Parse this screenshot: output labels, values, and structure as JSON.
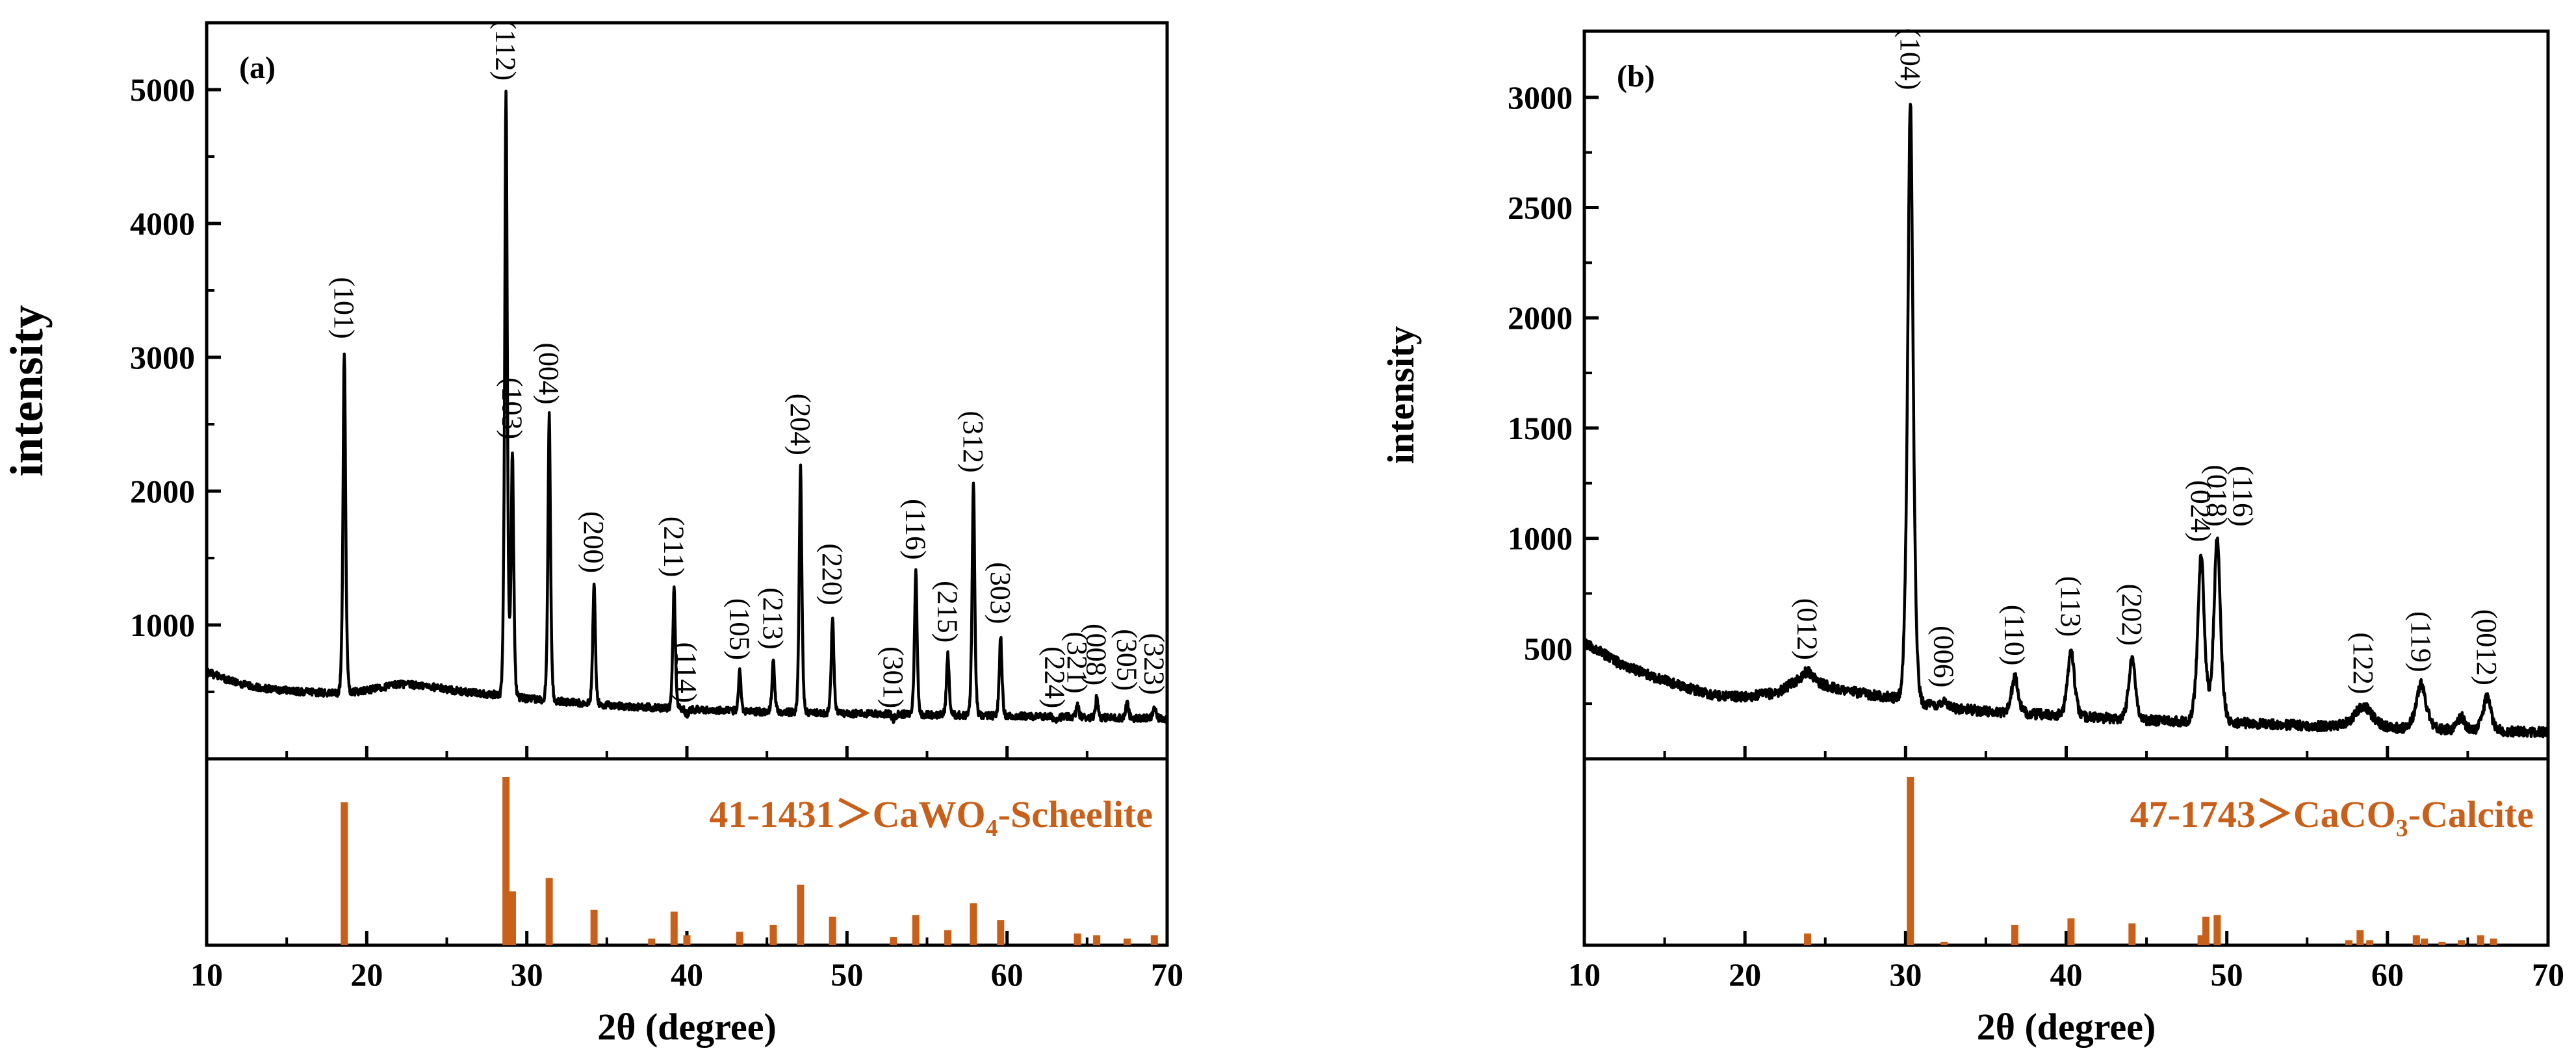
{
  "chart_data": [
    {
      "panel": "(a)",
      "type": "line",
      "xlabel": "2θ (degree)",
      "ylabel": "intensity",
      "xlim": [
        10,
        70
      ],
      "ylim": [
        0,
        5500
      ],
      "x_ticks": [
        10,
        20,
        30,
        40,
        50,
        60,
        70
      ],
      "y_ticks": [
        1000,
        2000,
        3000,
        4000,
        5000
      ],
      "baseline": [
        [
          10,
          650
        ],
        [
          12,
          560
        ],
        [
          14,
          520
        ],
        [
          16,
          500
        ],
        [
          18,
          490
        ],
        [
          20,
          510
        ],
        [
          22,
          560
        ],
        [
          24,
          540
        ],
        [
          26,
          500
        ],
        [
          28,
          480
        ],
        [
          30,
          450
        ],
        [
          35,
          400
        ],
        [
          40,
          370
        ],
        [
          45,
          350
        ],
        [
          50,
          340
        ],
        [
          55,
          330
        ],
        [
          60,
          320
        ],
        [
          65,
          310
        ],
        [
          70,
          300
        ]
      ],
      "peaks": [
        {
          "two_theta": 18.6,
          "intensity": 3050,
          "hkl": "(101)"
        },
        {
          "two_theta": 28.7,
          "intensity": 4980,
          "hkl": "(112)"
        },
        {
          "two_theta": 29.1,
          "intensity": 2300,
          "hkl": "(103)"
        },
        {
          "two_theta": 31.4,
          "intensity": 2560,
          "hkl": "(004)"
        },
        {
          "two_theta": 34.2,
          "intensity": 1300,
          "hkl": "(200)"
        },
        {
          "two_theta": 39.2,
          "intensity": 1270,
          "hkl": "(211)"
        },
        {
          "two_theta": 40.0,
          "intensity": 330,
          "hkl": "(114)"
        },
        {
          "two_theta": 43.3,
          "intensity": 650,
          "hkl": "(105)"
        },
        {
          "two_theta": 45.4,
          "intensity": 730,
          "hkl": "(213)"
        },
        {
          "two_theta": 47.1,
          "intensity": 2180,
          "hkl": "(204)"
        },
        {
          "two_theta": 49.1,
          "intensity": 1060,
          "hkl": "(220)"
        },
        {
          "two_theta": 52.9,
          "intensity": 290,
          "hkl": "(301)"
        },
        {
          "two_theta": 54.3,
          "intensity": 1400,
          "hkl": "(116)"
        },
        {
          "two_theta": 56.3,
          "intensity": 780,
          "hkl": "(215)"
        },
        {
          "two_theta": 57.9,
          "intensity": 2050,
          "hkl": "(312)"
        },
        {
          "two_theta": 59.6,
          "intensity": 920,
          "hkl": "(303)"
        },
        {
          "two_theta": 63.0,
          "intensity": 290,
          "hkl": "(224)"
        },
        {
          "two_theta": 64.4,
          "intensity": 400,
          "hkl": "(321)"
        },
        {
          "two_theta": 65.6,
          "intensity": 460,
          "hkl": "(008)"
        },
        {
          "two_theta": 67.5,
          "intensity": 420,
          "hkl": "(305)"
        },
        {
          "two_theta": 69.2,
          "intensity": 390,
          "hkl": "(323)"
        }
      ],
      "reference": {
        "label_prefix": "41-1431＞CaWO",
        "label_sub": "4",
        "label_suffix": "-Scheelite",
        "color": "#c8601a",
        "sticks": [
          {
            "two_theta": 18.6,
            "rel": 0.85
          },
          {
            "two_theta": 28.7,
            "rel": 1.0
          },
          {
            "two_theta": 29.1,
            "rel": 0.32
          },
          {
            "two_theta": 31.4,
            "rel": 0.4
          },
          {
            "two_theta": 34.2,
            "rel": 0.21
          },
          {
            "two_theta": 37.8,
            "rel": 0.04
          },
          {
            "two_theta": 39.2,
            "rel": 0.2
          },
          {
            "two_theta": 40.0,
            "rel": 0.06
          },
          {
            "two_theta": 43.3,
            "rel": 0.08
          },
          {
            "two_theta": 45.4,
            "rel": 0.12
          },
          {
            "two_theta": 47.1,
            "rel": 0.36
          },
          {
            "two_theta": 49.1,
            "rel": 0.17
          },
          {
            "two_theta": 52.9,
            "rel": 0.05
          },
          {
            "two_theta": 54.3,
            "rel": 0.18
          },
          {
            "two_theta": 56.3,
            "rel": 0.09
          },
          {
            "two_theta": 57.9,
            "rel": 0.25
          },
          {
            "two_theta": 59.6,
            "rel": 0.15
          },
          {
            "two_theta": 64.4,
            "rel": 0.07
          },
          {
            "two_theta": 65.6,
            "rel": 0.06
          },
          {
            "two_theta": 67.5,
            "rel": 0.04
          },
          {
            "two_theta": 69.2,
            "rel": 0.06
          }
        ]
      }
    },
    {
      "panel": "(b)",
      "type": "line",
      "xlabel": "2θ (degree)",
      "ylabel": "intensity",
      "xlim": [
        10,
        70
      ],
      "ylim": [
        0,
        3300
      ],
      "x_ticks": [
        10,
        20,
        30,
        40,
        50,
        60,
        70
      ],
      "y_ticks": [
        500,
        1000,
        1500,
        2000,
        2500,
        3000
      ],
      "baseline": [
        [
          10,
          530
        ],
        [
          12,
          440
        ],
        [
          14,
          380
        ],
        [
          16,
          330
        ],
        [
          18,
          290
        ],
        [
          20,
          280
        ],
        [
          22,
          300
        ],
        [
          23,
          340
        ],
        [
          25,
          330
        ],
        [
          27,
          300
        ],
        [
          29,
          280
        ],
        [
          31,
          250
        ],
        [
          33,
          230
        ],
        [
          35,
          215
        ],
        [
          40,
          195
        ],
        [
          45,
          175
        ],
        [
          50,
          165
        ],
        [
          55,
          150
        ],
        [
          60,
          140
        ],
        [
          65,
          130
        ],
        [
          70,
          120
        ]
      ],
      "peaks": [
        {
          "two_theta": 23.9,
          "intensity": 395,
          "hkl": "(012)",
          "width": 0.6
        },
        {
          "two_theta": 30.3,
          "intensity": 2980,
          "hkl": "(104)",
          "width": 0.25
        },
        {
          "two_theta": 32.4,
          "intensity": 270,
          "hkl": "(006)",
          "width": 0.25
        },
        {
          "two_theta": 36.8,
          "intensity": 370,
          "hkl": "(110)",
          "width": 0.3
        },
        {
          "two_theta": 40.3,
          "intensity": 500,
          "hkl": "(113)",
          "width": 0.3
        },
        {
          "two_theta": 44.1,
          "intensity": 460,
          "hkl": "(202)",
          "width": 0.3
        },
        {
          "two_theta": 48.4,
          "intensity": 930,
          "hkl": "(024)",
          "width": 0.3
        },
        {
          "two_theta": 49.4,
          "intensity": 1000,
          "hkl": "(018)",
          "width": 0.3
        },
        {
          "two_theta": 58.5,
          "intensity": 240,
          "hkl": "(122)",
          "width": 0.8
        },
        {
          "two_theta": 62.1,
          "intensity": 340,
          "hkl": "(119)",
          "width": 0.45
        },
        {
          "two_theta": 64.6,
          "intensity": 190,
          "hkl": "",
          "width": 0.3
        },
        {
          "two_theta": 66.2,
          "intensity": 280,
          "hkl": "(0012)",
          "width": 0.35
        }
      ],
      "extra_labels": [
        {
          "two_theta": 49.9,
          "hkl": "(116)"
        }
      ],
      "reference": {
        "label_prefix": "47-1743＞CaCO",
        "label_sub": "3",
        "label_suffix": "-Calcite",
        "color": "#c8601a",
        "sticks": [
          {
            "two_theta": 23.9,
            "rel": 0.07
          },
          {
            "two_theta": 30.3,
            "rel": 1.0
          },
          {
            "two_theta": 32.4,
            "rel": 0.02
          },
          {
            "two_theta": 36.8,
            "rel": 0.12
          },
          {
            "two_theta": 40.3,
            "rel": 0.16
          },
          {
            "two_theta": 44.1,
            "rel": 0.13
          },
          {
            "two_theta": 48.4,
            "rel": 0.06
          },
          {
            "two_theta": 48.7,
            "rel": 0.17
          },
          {
            "two_theta": 49.4,
            "rel": 0.18
          },
          {
            "two_theta": 57.6,
            "rel": 0.03
          },
          {
            "two_theta": 58.3,
            "rel": 0.09
          },
          {
            "two_theta": 58.9,
            "rel": 0.03
          },
          {
            "two_theta": 61.8,
            "rel": 0.06
          },
          {
            "two_theta": 62.3,
            "rel": 0.04
          },
          {
            "two_theta": 63.4,
            "rel": 0.02
          },
          {
            "two_theta": 64.6,
            "rel": 0.03
          },
          {
            "two_theta": 65.8,
            "rel": 0.06
          },
          {
            "two_theta": 66.6,
            "rel": 0.04
          }
        ]
      }
    }
  ]
}
